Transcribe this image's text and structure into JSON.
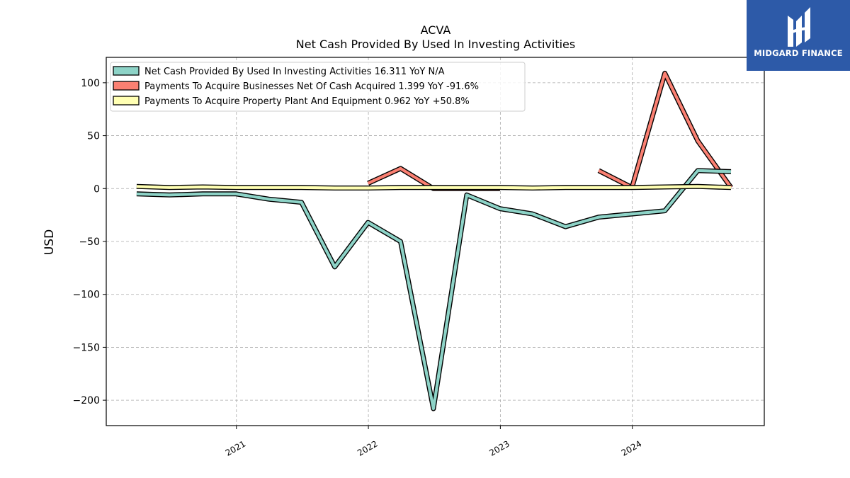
{
  "chart_data": {
    "type": "line",
    "title": "ACVA",
    "subtitle": "Net Cash Provided By Used In Investing Activities",
    "ylabel": "USD",
    "xlabel": "",
    "x_ticks": [
      "2021",
      "2022",
      "2023",
      "2024"
    ],
    "y_ticks": [
      100,
      50,
      0,
      -50,
      -100,
      -150,
      -200
    ],
    "y_tick_labels": [
      "100",
      "50",
      "0",
      "−50",
      "−100",
      "−150",
      "−200"
    ],
    "ylim": [
      -224,
      124
    ],
    "xlim": [
      "2020-01-07",
      "2024-12-31"
    ],
    "grid": true,
    "legend_position": "top-left",
    "x": [
      "2020-03-31",
      "2020-06-30",
      "2020-09-30",
      "2020-12-31",
      "2021-03-31",
      "2021-06-30",
      "2021-09-30",
      "2021-12-31",
      "2022-03-31",
      "2022-06-30",
      "2022-09-30",
      "2022-12-31",
      "2023-03-31",
      "2023-06-30",
      "2023-09-30",
      "2023-12-31",
      "2024-03-31",
      "2024-06-30",
      "2024-09-30"
    ],
    "series": [
      {
        "name": "Net Cash Provided By Used In Investing Activities",
        "legend_label": "Net Cash Provided By Used In Investing Activities  16.311 YoY N/A",
        "color": "#8dd3c7",
        "values": [
          -5,
          -6,
          -5,
          -5,
          -10,
          -13,
          -74,
          -32,
          -50,
          -208,
          -6,
          -19,
          -24,
          -36,
          -27,
          -24,
          -21,
          17,
          16
        ]
      },
      {
        "name": "Payments To Acquire Businesses Net Of Cash Acquired",
        "legend_label": "Payments To Acquire Businesses Net Of Cash Acquired  1.399 YoY -91.6%",
        "color": "#fb8072",
        "values": [
          null,
          null,
          null,
          1,
          null,
          null,
          null,
          5,
          19,
          0,
          0,
          0,
          null,
          null,
          17,
          1,
          109,
          45,
          1
        ]
      },
      {
        "name": "Payments To Acquire Property Plant And Equipment",
        "legend_label": "Payments To Acquire Property Plant And Equipment  0.962 YoY +50.8%",
        "color": "#ffffb3",
        "values": [
          2,
          1,
          1.5,
          1,
          1,
          1,
          0.5,
          0.5,
          1,
          1,
          1,
          1,
          0.5,
          1,
          1,
          1,
          1.5,
          2,
          1
        ]
      }
    ]
  },
  "logo": {
    "text": "MIDGARD FINANCE",
    "bg_color": "#2d5aa8"
  }
}
